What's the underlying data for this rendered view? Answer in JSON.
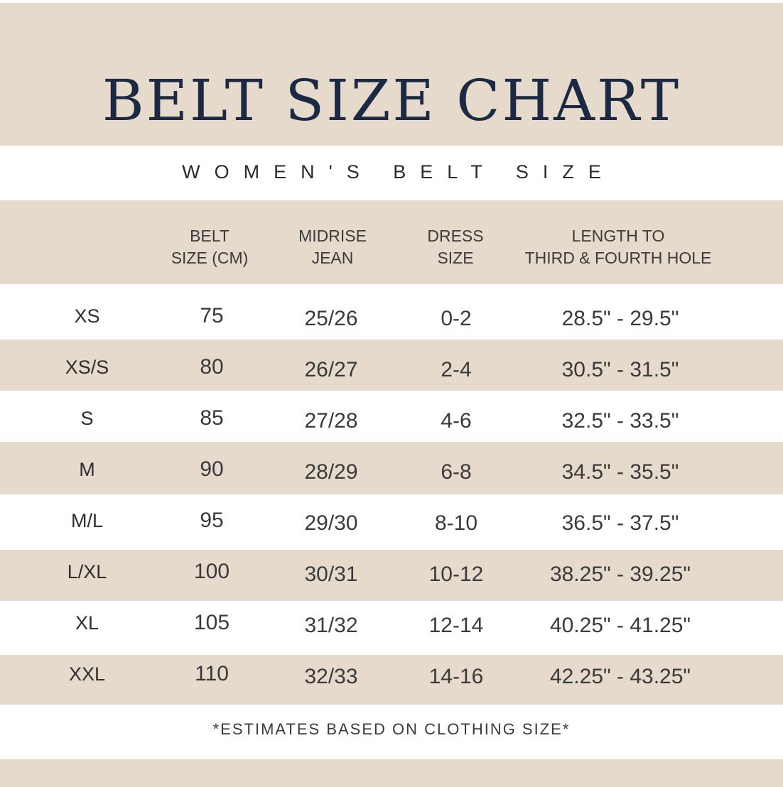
{
  "title": "BELT SIZE CHART",
  "subtitle": "WOMEN'S BELT SIZE",
  "headers": [
    "",
    "BELT\nSIZE (CM)",
    "MIDRISE\nJEAN",
    "DRESS\nSIZE",
    "LENGTH TO\nTHIRD & FOURTH HOLE"
  ],
  "rows": [
    {
      "size": "XS",
      "belt_cm": "75",
      "midrise_jean": "25/26",
      "dress_size": "0-2",
      "length": "28.5\" - 29.5\""
    },
    {
      "size": "XS/S",
      "belt_cm": "80",
      "midrise_jean": "26/27",
      "dress_size": "2-4",
      "length": "30.5\" - 31.5\""
    },
    {
      "size": "S",
      "belt_cm": "85",
      "midrise_jean": "27/28",
      "dress_size": "4-6",
      "length": "32.5\" - 33.5\""
    },
    {
      "size": "M",
      "belt_cm": "90",
      "midrise_jean": "28/29",
      "dress_size": "6-8",
      "length": "34.5\" - 35.5\""
    },
    {
      "size": "M/L",
      "belt_cm": "95",
      "midrise_jean": "29/30",
      "dress_size": "8-10",
      "length": "36.5\" - 37.5\""
    },
    {
      "size": "L/XL",
      "belt_cm": "100",
      "midrise_jean": "30/31",
      "dress_size": "10-12",
      "length": "38.25\" - 39.25\""
    },
    {
      "size": "XL",
      "belt_cm": "105",
      "midrise_jean": "31/32",
      "dress_size": "12-14",
      "length": "40.25\" - 41.25\""
    },
    {
      "size": "XXL",
      "belt_cm": "110",
      "midrise_jean": "32/33",
      "dress_size": "14-16",
      "length": "42.25\" - 43.25\""
    }
  ],
  "footnote": "*ESTIMATES BASED ON CLOTHING SIZE*",
  "colors": {
    "band": "#e6dacd",
    "title": "#1c2943",
    "text": "#3a3a3a"
  }
}
